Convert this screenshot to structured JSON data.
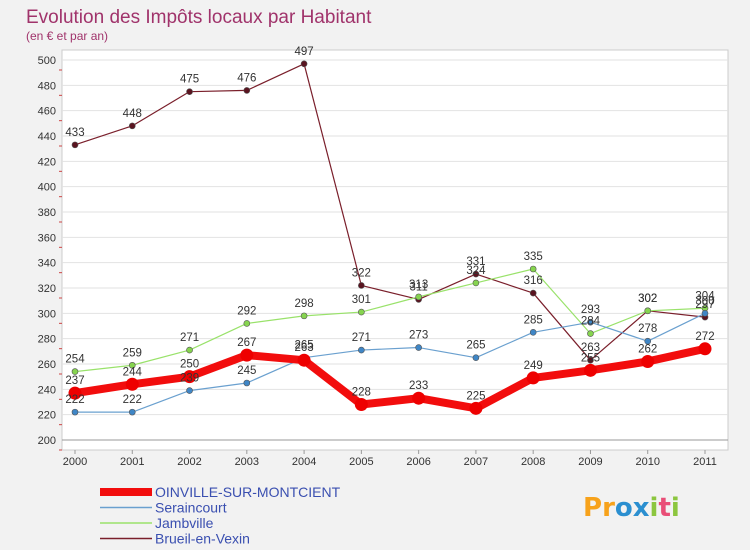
{
  "title": "Evolution des Impôts locaux par Habitant",
  "subtitle": "(en € et par an)",
  "logo": {
    "letters": [
      "P",
      "r",
      "o",
      "x",
      "i",
      "t",
      "i"
    ],
    "colors": [
      "#f7a21b",
      "#f7a21b",
      "#2b8fd0",
      "#2b8fd0",
      "#8cc63f",
      "#e94e77",
      "#8cc63f"
    ]
  },
  "chart_data": {
    "type": "line",
    "title": "Evolution des Impôts locaux par Habitant",
    "subtitle": "(en € et par an)",
    "xlabel": "",
    "ylabel": "",
    "x": [
      "2000",
      "2001",
      "2002",
      "2003",
      "2004",
      "2005",
      "2006",
      "2007",
      "2008",
      "2009",
      "2010",
      "2011"
    ],
    "ylim": [
      200,
      500
    ],
    "yticks": [
      200,
      220,
      240,
      260,
      280,
      300,
      320,
      340,
      360,
      380,
      400,
      420,
      440,
      460,
      480,
      500
    ],
    "grid": "horizontal",
    "legend": "bottom-left",
    "series": [
      {
        "name": "Brueil-en-Vexin",
        "color": "#7a1f2b",
        "marker": "#5a1420",
        "width": 1.2,
        "values": [
          433,
          448,
          475,
          476,
          497,
          322,
          311,
          331,
          316,
          263,
          302,
          297
        ]
      },
      {
        "name": "Jambville",
        "color": "#99e26a",
        "marker": "#86d44f",
        "width": 1.2,
        "values": [
          254,
          259,
          271,
          292,
          298,
          301,
          313,
          324,
          335,
          284,
          302,
          304
        ]
      },
      {
        "name": "Seraincourt",
        "color": "#6aa0cf",
        "marker": "#3f86c6",
        "width": 1.2,
        "values": [
          222,
          222,
          239,
          245,
          265,
          271,
          273,
          265,
          285,
          293,
          278,
          300
        ]
      },
      {
        "name": "OINVILLE-SUR-MONTCIENT",
        "color": "#f20d0d",
        "marker": "#ee0000",
        "width": 8,
        "values": [
          237,
          244,
          250,
          267,
          263,
          228,
          233,
          225,
          249,
          255,
          262,
          272
        ]
      }
    ],
    "annotations": [
      {
        "x": "2000",
        "y": 433,
        "text": "433"
      },
      {
        "x": "2001",
        "y": 448,
        "text": "448"
      },
      {
        "x": "2002",
        "y": 475,
        "text": "475"
      },
      {
        "x": "2003",
        "y": 476,
        "text": "476"
      },
      {
        "x": "2004",
        "y": 497,
        "text": "497"
      },
      {
        "x": "2005",
        "y": 322,
        "text": "322"
      },
      {
        "x": "2006",
        "y": 311,
        "text": "311"
      },
      {
        "x": "2007",
        "y": 331,
        "text": "331"
      },
      {
        "x": "2008",
        "y": 316,
        "text": "316"
      },
      {
        "x": "2009",
        "y": 263,
        "text": "263"
      },
      {
        "x": "2010",
        "y": 302,
        "text": "302"
      },
      {
        "x": "2011",
        "y": 297,
        "text": "297"
      },
      {
        "x": "2000",
        "y": 254,
        "text": "254"
      },
      {
        "x": "2001",
        "y": 259,
        "text": "259"
      },
      {
        "x": "2002",
        "y": 271,
        "text": "271"
      },
      {
        "x": "2003",
        "y": 292,
        "text": "292"
      },
      {
        "x": "2004",
        "y": 298,
        "text": "298"
      },
      {
        "x": "2005",
        "y": 301,
        "text": "301"
      },
      {
        "x": "2006",
        "y": 313,
        "text": "313"
      },
      {
        "x": "2007",
        "y": 324,
        "text": "324"
      },
      {
        "x": "2008",
        "y": 335,
        "text": "335"
      },
      {
        "x": "2009",
        "y": 284,
        "text": "284"
      },
      {
        "x": "2010",
        "y": 302,
        "text": "302"
      },
      {
        "x": "2011",
        "y": 304,
        "text": "304"
      },
      {
        "x": "2000",
        "y": 222,
        "text": "222"
      },
      {
        "x": "2001",
        "y": 222,
        "text": "222"
      },
      {
        "x": "2002",
        "y": 239,
        "text": "239"
      },
      {
        "x": "2003",
        "y": 245,
        "text": "245"
      },
      {
        "x": "2004",
        "y": 265,
        "text": "265"
      },
      {
        "x": "2005",
        "y": 271,
        "text": "271"
      },
      {
        "x": "2006",
        "y": 273,
        "text": "273"
      },
      {
        "x": "2007",
        "y": 265,
        "text": "265"
      },
      {
        "x": "2008",
        "y": 285,
        "text": "285"
      },
      {
        "x": "2009",
        "y": 293,
        "text": "293"
      },
      {
        "x": "2010",
        "y": 278,
        "text": "278"
      },
      {
        "x": "2011",
        "y": 300,
        "text": "300"
      },
      {
        "x": "2000",
        "y": 237,
        "text": "237"
      },
      {
        "x": "2001",
        "y": 244,
        "text": "244"
      },
      {
        "x": "2002",
        "y": 250,
        "text": "250"
      },
      {
        "x": "2003",
        "y": 267,
        "text": "267"
      },
      {
        "x": "2004",
        "y": 263,
        "text": "263"
      },
      {
        "x": "2005",
        "y": 228,
        "text": "228"
      },
      {
        "x": "2006",
        "y": 233,
        "text": "233"
      },
      {
        "x": "2007",
        "y": 225,
        "text": "225"
      },
      {
        "x": "2008",
        "y": 249,
        "text": "249"
      },
      {
        "x": "2009",
        "y": 255,
        "text": "255"
      },
      {
        "x": "2010",
        "y": 262,
        "text": "262"
      },
      {
        "x": "2011",
        "y": 272,
        "text": "272"
      }
    ]
  }
}
